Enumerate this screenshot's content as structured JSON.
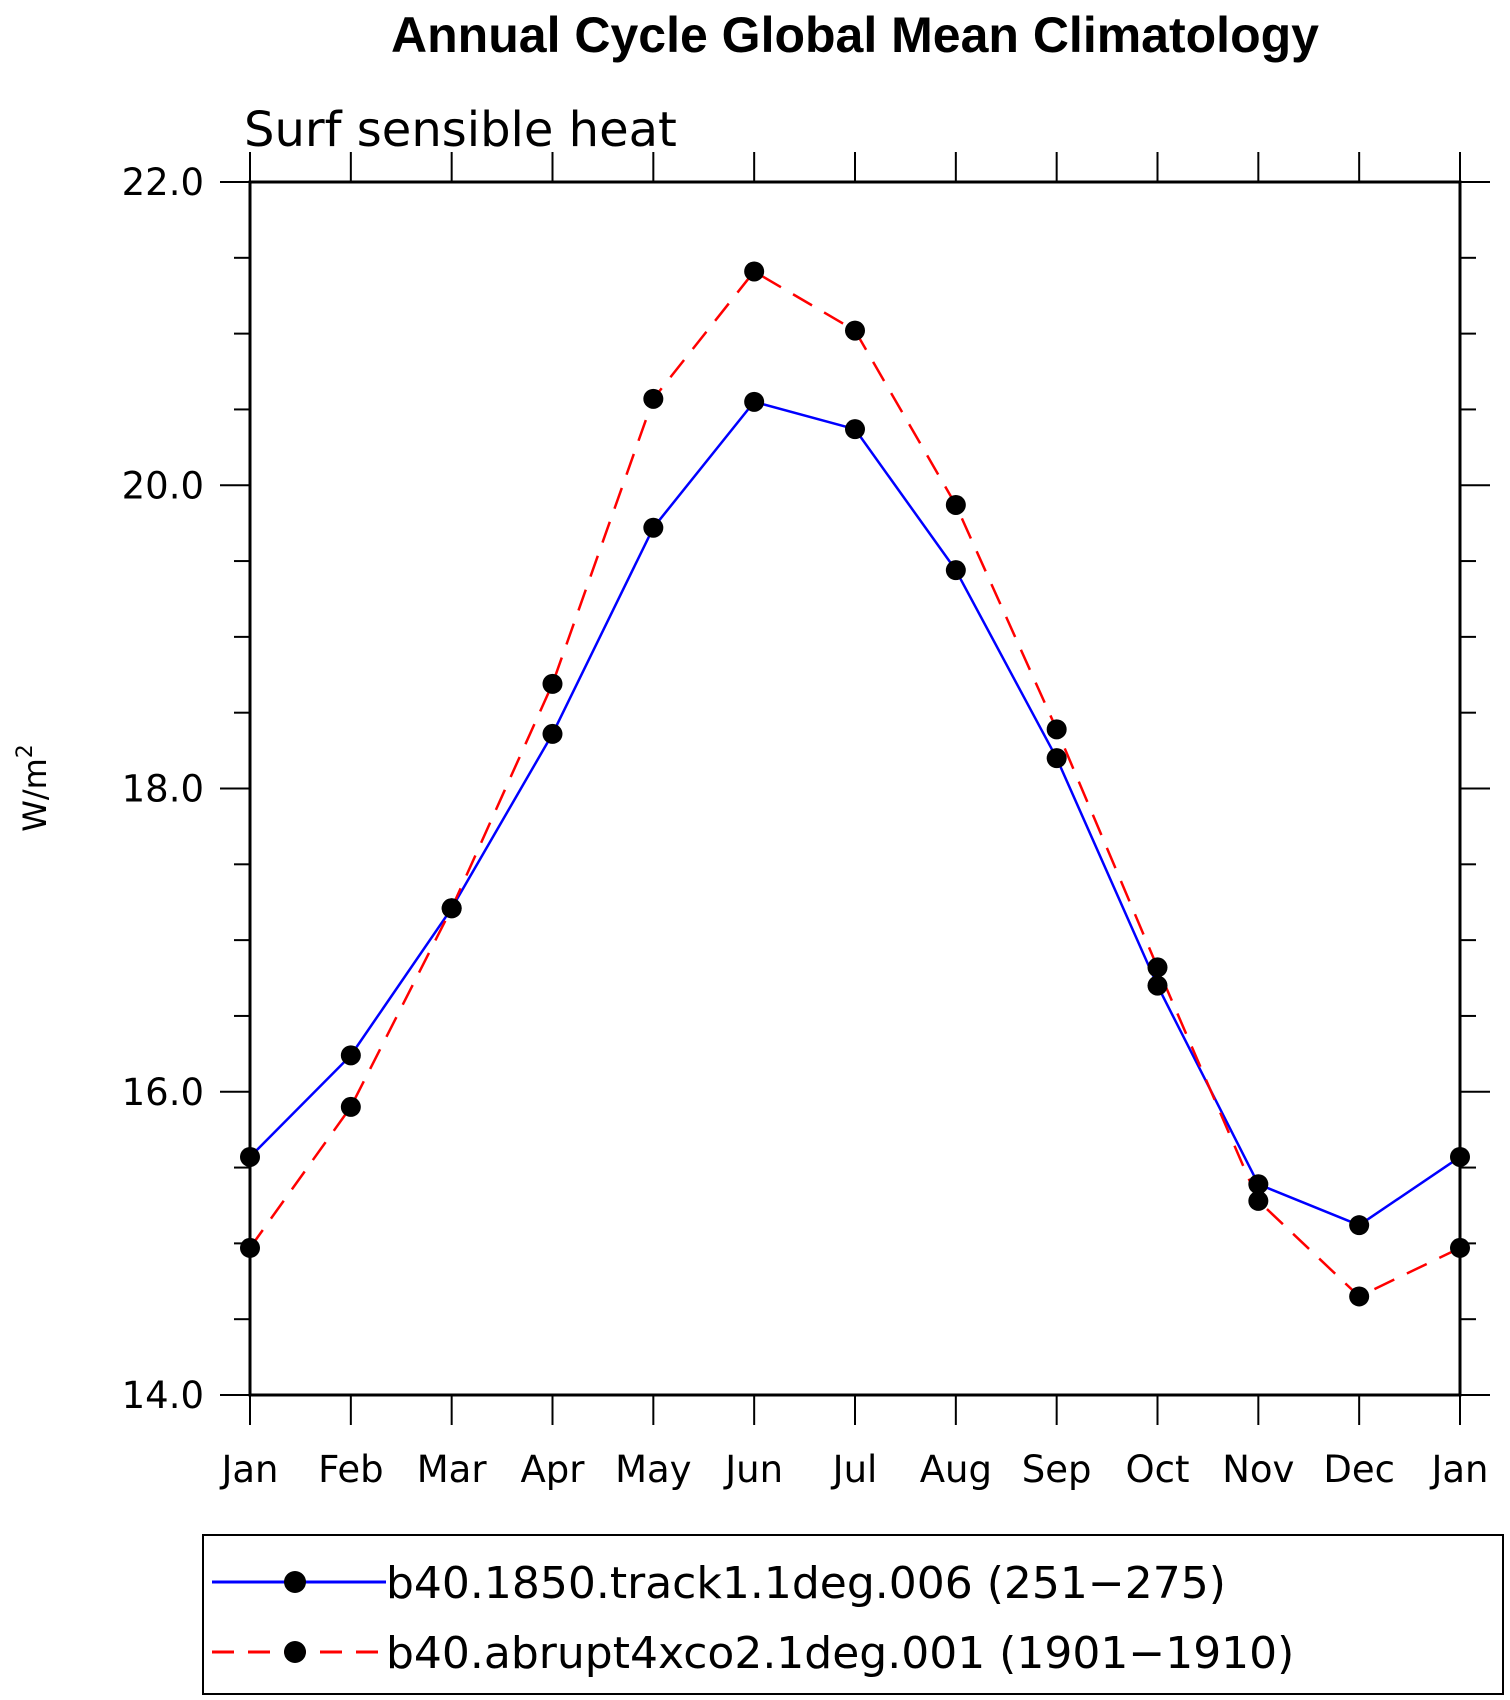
{
  "chart_data": {
    "type": "line",
    "title": "Annual Cycle Global Mean Climatology",
    "subtitle": "Surf sensible heat",
    "xlabel": "",
    "ylabel": "W/m",
    "ylabel_superscript": "2",
    "categories": [
      "Jan",
      "Feb",
      "Mar",
      "Apr",
      "May",
      "Jun",
      "Jul",
      "Aug",
      "Sep",
      "Oct",
      "Nov",
      "Dec",
      "Jan"
    ],
    "ylim": [
      14.0,
      22.0
    ],
    "yticks_major": [
      "14.0",
      "16.0",
      "18.0",
      "20.0",
      "22.0"
    ],
    "grid": false,
    "legend_position": "bottom",
    "series": [
      {
        "name": "b40.1850.track1.1deg.006 (251−275)",
        "color": "#0000ff",
        "dash": "solid",
        "values": [
          15.57,
          16.24,
          17.21,
          18.36,
          19.72,
          20.55,
          20.37,
          19.44,
          18.2,
          16.7,
          15.39,
          15.12,
          15.57
        ]
      },
      {
        "name": "b40.abrupt4xco2.1deg.001 (1901−1910)",
        "color": "#ff0000",
        "dash": "dashed",
        "values": [
          14.97,
          15.9,
          17.21,
          18.69,
          20.57,
          21.41,
          21.02,
          19.87,
          18.39,
          16.82,
          15.28,
          14.65,
          14.97
        ]
      }
    ]
  }
}
